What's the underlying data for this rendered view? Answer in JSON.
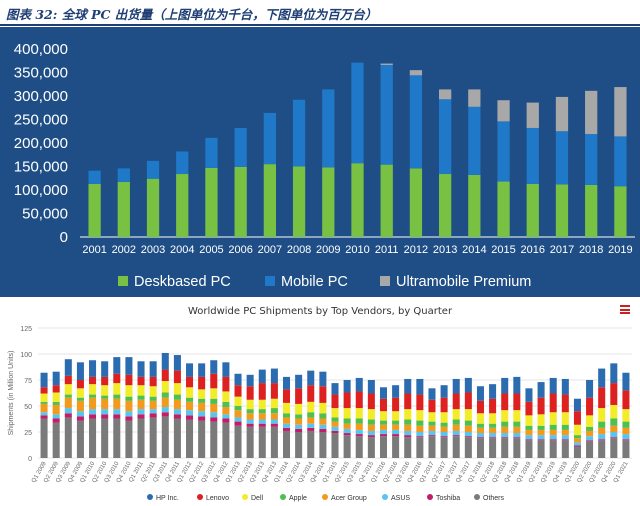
{
  "figure_title": "图表 32: 全球 PC 出货量（上图单位为千台，下图单位为百万台）",
  "colors": {
    "top_background": "#1f4e86",
    "deskbased": "#79c142",
    "mobile": "#1f78c8",
    "ultramobile": "#a8a8a8",
    "hp": "#2b6cb0",
    "lenovo": "#dd2020",
    "dell": "#f2ec2a",
    "apple": "#4fbf50",
    "acer": "#f29a1e",
    "asus": "#5bc4ee",
    "toshiba": "#c41c6a",
    "others": "#7a7a7a"
  },
  "chart_data": [
    {
      "type": "bar",
      "stacked": true,
      "title": "",
      "xlabel": "",
      "ylabel": "",
      "ylim": [
        0,
        400000
      ],
      "yticks": [
        "0",
        "50,000",
        "100,000",
        "150,000",
        "200,000",
        "250,000",
        "300,000",
        "350,000",
        "400,000"
      ],
      "grid": false,
      "legend_position": "bottom",
      "categories": [
        "2001",
        "2002",
        "2003",
        "2004",
        "2005",
        "2006",
        "2007",
        "2008",
        "2009",
        "2010",
        "2011",
        "2012",
        "2013",
        "2014",
        "2015",
        "2016",
        "2017",
        "2018",
        "2019"
      ],
      "series": [
        {
          "name": "Deskbased PC",
          "values": [
            113000,
            117000,
            124000,
            134000,
            147000,
            149000,
            155000,
            150000,
            148000,
            157000,
            154000,
            146000,
            134000,
            132000,
            118000,
            113000,
            112000,
            111000,
            108000
          ]
        },
        {
          "name": "Mobile PC",
          "values": [
            28000,
            29000,
            38000,
            48000,
            64000,
            83000,
            109000,
            142000,
            166000,
            214000,
            212000,
            198000,
            159000,
            145000,
            128000,
            119000,
            113000,
            108000,
            106000
          ]
        },
        {
          "name": "Ultramobile Premium",
          "values": [
            0,
            0,
            0,
            0,
            0,
            0,
            0,
            0,
            0,
            0,
            3000,
            11000,
            21000,
            37000,
            45000,
            54000,
            73000,
            92000,
            105000
          ]
        }
      ]
    },
    {
      "type": "bar",
      "stacked": true,
      "title": "Worldwide PC Shipments by Top Vendors, by Quarter",
      "xlabel": "",
      "ylabel": "Shipments (in Million Units)",
      "ylim": [
        0,
        125
      ],
      "yticks": [
        "0",
        "25",
        "50",
        "75",
        "100",
        "125"
      ],
      "grid": true,
      "legend_position": "bottom",
      "categories": [
        "Q1 2009",
        "Q2 2009",
        "Q3 2009",
        "Q4 2009",
        "Q1 2010",
        "Q2 2010",
        "Q3 2010",
        "Q4 2010",
        "Q1 2011",
        "Q2 2011",
        "Q3 2011",
        "Q4 2011",
        "Q1 2012",
        "Q2 2012",
        "Q3 2012",
        "Q4 2012",
        "Q1 2013",
        "Q2 2013",
        "Q3 2013",
        "Q4 2013",
        "Q1 2014",
        "Q2 2014",
        "Q3 2014",
        "Q4 2014",
        "Q1 2015",
        "Q2 2015",
        "Q3 2015",
        "Q4 2015",
        "Q1 2016",
        "Q2 2016",
        "Q3 2016",
        "Q4 2016",
        "Q1 2017",
        "Q2 2017",
        "Q3 2017",
        "Q4 2017",
        "Q1 2018",
        "Q2 2018",
        "Q3 2018",
        "Q4 2018",
        "Q1 2019",
        "Q2 2019",
        "Q3 2019",
        "Q4 2019",
        "Q1 2020",
        "Q2 2020",
        "Q3 2020",
        "Q4 2020",
        "Q1 2021"
      ],
      "series": [
        {
          "name": "HP Inc.",
          "values": [
            14,
            13,
            16,
            17,
            16,
            15,
            16,
            17,
            15,
            15,
            16,
            15,
            13,
            13,
            13,
            14,
            11,
            11,
            13,
            14,
            12,
            13,
            14,
            14,
            11,
            12,
            13,
            13,
            11,
            12,
            14,
            15,
            11,
            12,
            14,
            14,
            14,
            14,
            15,
            16,
            13,
            15,
            15,
            15,
            12,
            17,
            18,
            19,
            17
          ]
        },
        {
          "name": "Lenovo",
          "values": [
            6,
            7,
            8,
            8,
            7,
            8,
            9,
            10,
            8,
            9,
            11,
            12,
            10,
            12,
            14,
            14,
            11,
            13,
            16,
            15,
            13,
            15,
            16,
            16,
            13,
            15,
            16,
            15,
            12,
            13,
            15,
            15,
            12,
            14,
            15,
            16,
            12,
            14,
            16,
            16,
            13,
            16,
            18,
            17,
            13,
            17,
            20,
            21,
            18
          ]
        },
        {
          "name": "Dell",
          "values": [
            8,
            9,
            10,
            9,
            10,
            10,
            11,
            11,
            10,
            10,
            11,
            11,
            10,
            9,
            10,
            10,
            9,
            9,
            9,
            9,
            10,
            10,
            10,
            10,
            9,
            10,
            10,
            10,
            9,
            9,
            10,
            10,
            9,
            10,
            10,
            11,
            10,
            10,
            11,
            11,
            10,
            11,
            12,
            12,
            10,
            11,
            13,
            13,
            12
          ]
        },
        {
          "name": "Apple",
          "values": [
            2,
            3,
            3,
            3,
            3,
            3,
            4,
            4,
            4,
            4,
            5,
            5,
            4,
            4,
            5,
            5,
            4,
            4,
            4,
            5,
            4,
            4,
            5,
            5,
            4,
            5,
            5,
            5,
            4,
            4,
            5,
            5,
            4,
            4,
            5,
            5,
            4,
            4,
            5,
            5,
            4,
            4,
            5,
            5,
            3,
            4,
            6,
            7,
            6
          ]
        },
        {
          "name": "Acer Group",
          "values": [
            8,
            9,
            10,
            10,
            11,
            10,
            10,
            10,
            9,
            8,
            9,
            9,
            8,
            8,
            8,
            7,
            7,
            6,
            6,
            6,
            6,
            6,
            6,
            6,
            5,
            5,
            6,
            6,
            5,
            5,
            6,
            6,
            5,
            5,
            6,
            6,
            5,
            5,
            6,
            6,
            5,
            5,
            5,
            5,
            4,
            5,
            6,
            6,
            6
          ]
        },
        {
          "name": "ASUS",
          "values": [
            3,
            4,
            5,
            5,
            5,
            5,
            5,
            5,
            5,
            4,
            5,
            5,
            5,
            5,
            5,
            4,
            4,
            4,
            4,
            4,
            4,
            4,
            4,
            4,
            4,
            4,
            4,
            4,
            4,
            4,
            4,
            4,
            4,
            4,
            4,
            4,
            4,
            4,
            4,
            4,
            4,
            4,
            4,
            4,
            3,
            4,
            5,
            5,
            5
          ]
        },
        {
          "name": "Toshiba",
          "values": [
            3,
            4,
            4,
            4,
            4,
            4,
            4,
            4,
            4,
            4,
            4,
            4,
            4,
            4,
            4,
            4,
            4,
            3,
            3,
            3,
            3,
            3,
            3,
            3,
            2,
            2,
            2,
            2,
            2,
            2,
            2,
            1,
            1,
            1,
            1,
            1,
            1,
            1,
            1,
            1,
            1,
            1,
            1,
            1,
            1,
            1,
            1,
            1,
            1
          ]
        },
        {
          "name": "Others",
          "values": [
            38,
            34,
            39,
            36,
            38,
            38,
            38,
            36,
            38,
            39,
            40,
            38,
            37,
            36,
            35,
            34,
            31,
            30,
            30,
            30,
            26,
            25,
            26,
            25,
            24,
            22,
            21,
            20,
            21,
            21,
            20,
            20,
            21,
            20,
            21,
            20,
            19,
            19,
            19,
            19,
            17,
            17,
            17,
            17,
            11,
            16,
            17,
            19,
            17
          ]
        }
      ]
    }
  ]
}
